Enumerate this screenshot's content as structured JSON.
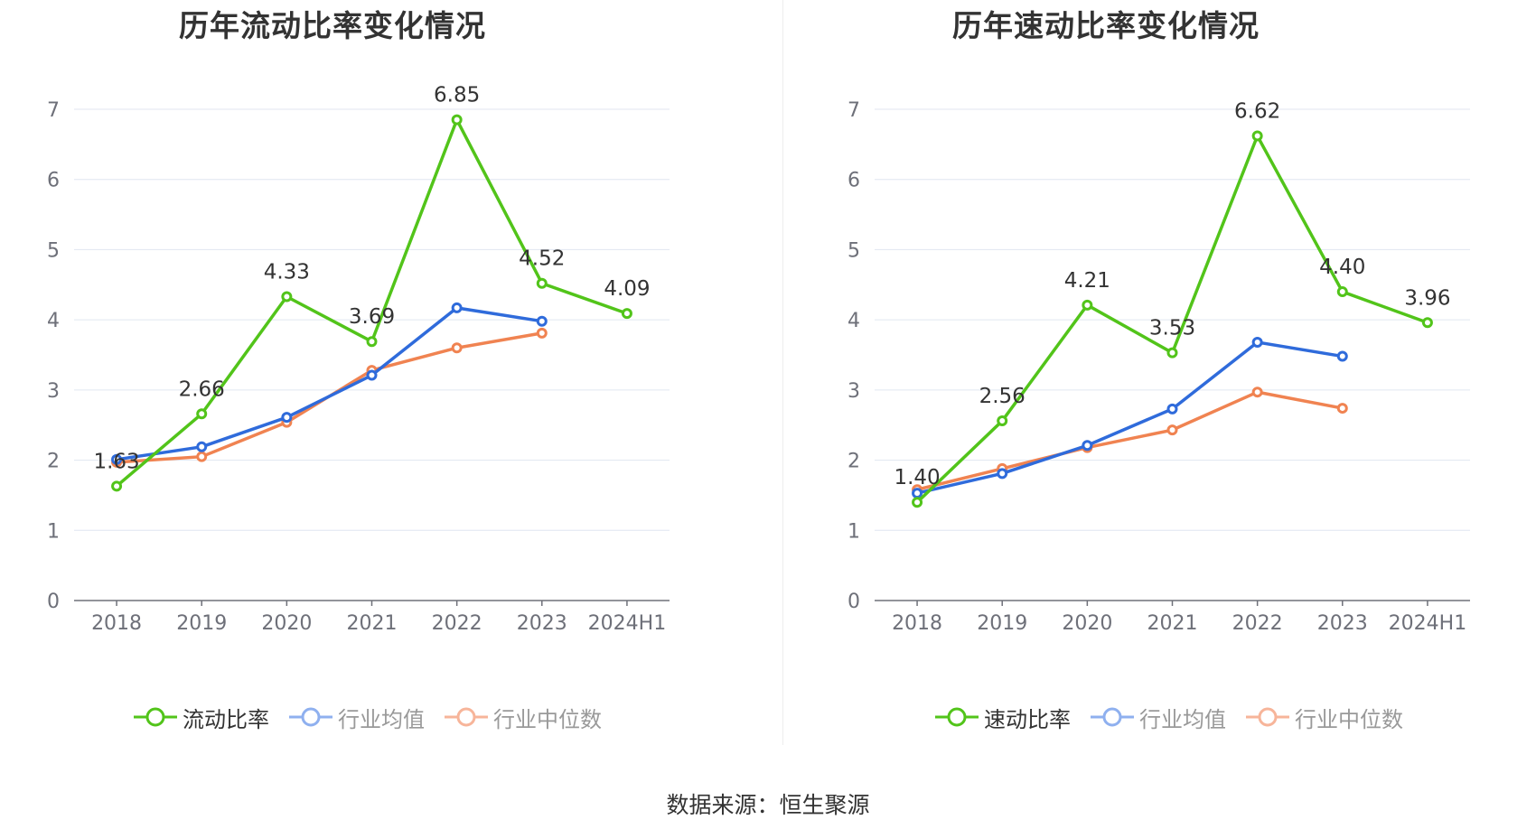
{
  "source_text": "数据来源：恒生聚源",
  "chart_data": [
    {
      "type": "line",
      "title": "历年流动比率变化情况",
      "xlabel": "",
      "ylabel": "",
      "categories": [
        "2018",
        "2019",
        "2020",
        "2021",
        "2022",
        "2023",
        "2024H1"
      ],
      "ylim": [
        0,
        7
      ],
      "yticks": [
        0,
        1,
        2,
        3,
        4,
        5,
        6,
        7
      ],
      "grid": true,
      "legend_position": "bottom",
      "series": [
        {
          "name": "流动比率",
          "color": "#52c41a",
          "labeled": true,
          "values": [
            1.63,
            2.66,
            4.33,
            3.69,
            6.85,
            4.52,
            4.09
          ]
        },
        {
          "name": "行业均值",
          "color": "#2f6bdb",
          "labeled": false,
          "values": [
            2.01,
            2.19,
            2.61,
            3.21,
            4.17,
            3.98,
            null
          ]
        },
        {
          "name": "行业中位数",
          "color": "#f08351",
          "labeled": false,
          "values": [
            1.97,
            2.05,
            2.54,
            3.28,
            3.6,
            3.81,
            null
          ]
        }
      ],
      "data_labels": [
        "1.63",
        "2.66",
        "4.33",
        "3.69",
        "6.85",
        "4.52",
        "4.09"
      ]
    },
    {
      "type": "line",
      "title": "历年速动比率变化情况",
      "xlabel": "",
      "ylabel": "",
      "categories": [
        "2018",
        "2019",
        "2020",
        "2021",
        "2022",
        "2023",
        "2024H1"
      ],
      "ylim": [
        0,
        7
      ],
      "yticks": [
        0,
        1,
        2,
        3,
        4,
        5,
        6,
        7
      ],
      "grid": true,
      "legend_position": "bottom",
      "series": [
        {
          "name": "速动比率",
          "color": "#52c41a",
          "labeled": true,
          "values": [
            1.4,
            2.56,
            4.21,
            3.53,
            6.62,
            4.4,
            3.96
          ]
        },
        {
          "name": "行业均值",
          "color": "#2f6bdb",
          "labeled": false,
          "values": [
            1.53,
            1.81,
            2.21,
            2.73,
            3.68,
            3.48,
            null
          ]
        },
        {
          "name": "行业中位数",
          "color": "#f08351",
          "labeled": false,
          "values": [
            1.58,
            1.88,
            2.18,
            2.43,
            2.97,
            2.74,
            null
          ]
        }
      ],
      "data_labels": [
        "1.40",
        "2.56",
        "4.21",
        "3.53",
        "6.62",
        "4.40",
        "3.96"
      ]
    }
  ]
}
